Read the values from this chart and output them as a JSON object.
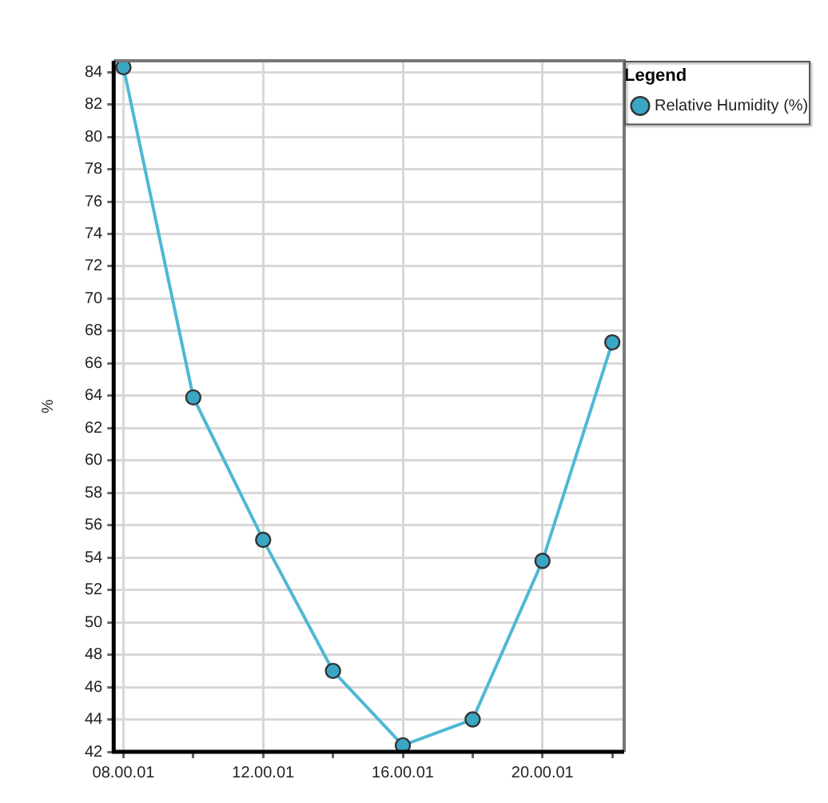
{
  "chart_data": {
    "type": "line",
    "ylabel": "%",
    "legend_title": "Legend",
    "legend": "top right",
    "grid": true,
    "marker": "circle",
    "line_style": "solid",
    "categories": [
      "08.00.01",
      null,
      "12.00.01",
      null,
      "16.00.01",
      null,
      "20.00.01",
      null
    ],
    "series": [
      {
        "name": "Relative Humidity (%)",
        "color": "#4fb8d4",
        "values": [
          84.3,
          63.9,
          55.1,
          47.0,
          42.4,
          44.0,
          53.8,
          67.3
        ]
      }
    ],
    "ylim": [
      42,
      84.7
    ],
    "yticks": [
      42,
      44,
      46,
      48,
      50,
      52,
      54,
      56,
      58,
      60,
      62,
      64,
      66,
      68,
      70,
      72,
      74,
      76,
      78,
      80,
      82,
      84
    ]
  }
}
